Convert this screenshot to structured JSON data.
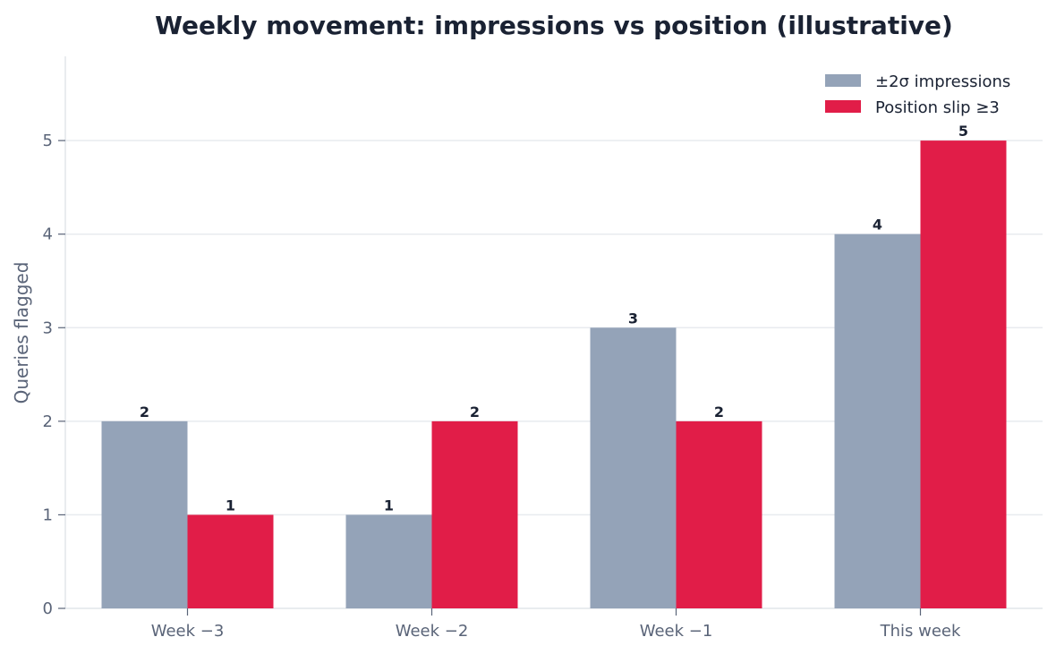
{
  "chart_data": {
    "type": "bar",
    "title": "Weekly movement: impressions vs position (illustrative)",
    "xlabel": "",
    "ylabel": "Queries flagged",
    "categories": [
      "Week −3",
      "Week −2",
      "Week −1",
      "This week"
    ],
    "series": [
      {
        "name": "±2σ impressions",
        "values": [
          2,
          1,
          3,
          4
        ],
        "color": "#94a3b8"
      },
      {
        "name": "Position slip ≥3",
        "values": [
          1,
          2,
          2,
          5
        ],
        "color": "#e11d48"
      }
    ],
    "ylim": [
      0,
      5.9
    ],
    "yticks": [
      0,
      1,
      2,
      3,
      4,
      5
    ],
    "grid": true,
    "legend": "top-right",
    "colors": {
      "axis": "#e2e5ea",
      "grid": "#e8ebef",
      "text": "#1a2233",
      "muted": "#5a6478"
    }
  }
}
